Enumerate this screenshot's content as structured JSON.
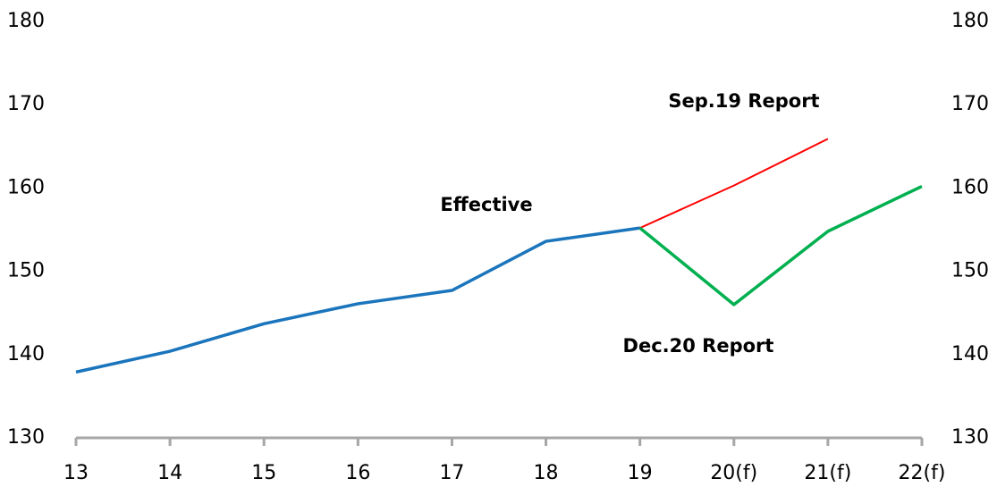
{
  "chart_data": {
    "type": "line",
    "categories": [
      "13",
      "14",
      "15",
      "16",
      "17",
      "18",
      "19",
      "20(f)",
      "21(f)",
      "22(f)"
    ],
    "series": [
      {
        "name": "Effective",
        "color": "#1b75bc",
        "values": [
          137.9,
          140.4,
          143.7,
          146.1,
          147.7,
          153.6,
          155.2,
          null,
          null,
          null
        ]
      },
      {
        "name": "Sep.19 Report",
        "color": "#ff0000",
        "values": [
          null,
          null,
          null,
          null,
          null,
          null,
          155.2,
          160.3,
          165.9,
          null
        ]
      },
      {
        "name": "Dec.20 Report",
        "color": "#00b050",
        "values": [
          null,
          null,
          null,
          null,
          null,
          null,
          155.2,
          146.0,
          154.8,
          160.2
        ]
      }
    ],
    "ylim": [
      130,
      180
    ],
    "yticks": [
      130,
      140,
      150,
      160,
      170,
      180
    ],
    "y2lim": [
      130,
      180
    ],
    "y2ticks": [
      130,
      140,
      150,
      160,
      170,
      180
    ],
    "grid": false
  }
}
